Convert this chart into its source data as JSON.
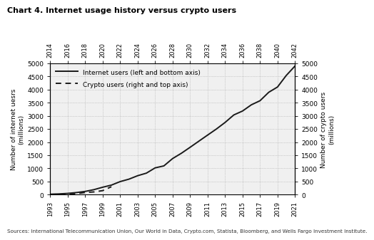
{
  "title": "Chart 4. Internet usage history versus crypto users",
  "source_text": "Sources: International Telecommunication Union, Our World in Data, Crypto.com, Statista, Bloomberg, and Wells Fargo Investment Institute.",
  "internet_years": [
    1993,
    1994,
    1995,
    1996,
    1997,
    1998,
    1999,
    2000,
    2001,
    2002,
    2003,
    2004,
    2005,
    2006,
    2007,
    2008,
    2009,
    2010,
    2011,
    2012,
    2013,
    2014,
    2015,
    2016,
    2017,
    2018,
    2019,
    2020,
    2021
  ],
  "internet_users": [
    14,
    25,
    45,
    77,
    120,
    188,
    280,
    361,
    495,
    587,
    719,
    817,
    1018,
    1093,
    1373,
    1574,
    1802,
    2035,
    2267,
    2497,
    2749,
    3035,
    3185,
    3420,
    3578,
    3900,
    4100,
    4540,
    4900
  ],
  "crypto_data_years": [
    2014,
    2015,
    2016,
    2017,
    2018,
    2019,
    2020,
    2021
  ],
  "crypto_users": [
    5,
    10,
    18,
    35,
    80,
    101,
    150,
    300
  ],
  "bottom_xticks": [
    1993,
    1995,
    1997,
    1999,
    2001,
    2003,
    2005,
    2007,
    2009,
    2011,
    2013,
    2015,
    2017,
    2019,
    2021
  ],
  "top_xticks": [
    2014,
    2016,
    2018,
    2020,
    2022,
    2024,
    2026,
    2028,
    2030,
    2032,
    2034,
    2036,
    2038,
    2040,
    2042
  ],
  "ylim": [
    0,
    5000
  ],
  "yticks": [
    0,
    500,
    1000,
    1500,
    2000,
    2500,
    3000,
    3500,
    4000,
    4500,
    5000
  ],
  "ylabel_left": "Number of internet uesrs\n(millions)",
  "ylabel_right": "Number of crypto users\n(millions)",
  "legend_internet": "Internet users (left and bottom axis)",
  "legend_crypto": "Crypto users (right and top axis)",
  "line_color": "#1a1a1a",
  "background_color": "#f0f0f0",
  "fig_color": "#ffffff",
  "internet_xlim": [
    1993,
    2021
  ],
  "crypto_xlim": [
    2014,
    2042
  ]
}
